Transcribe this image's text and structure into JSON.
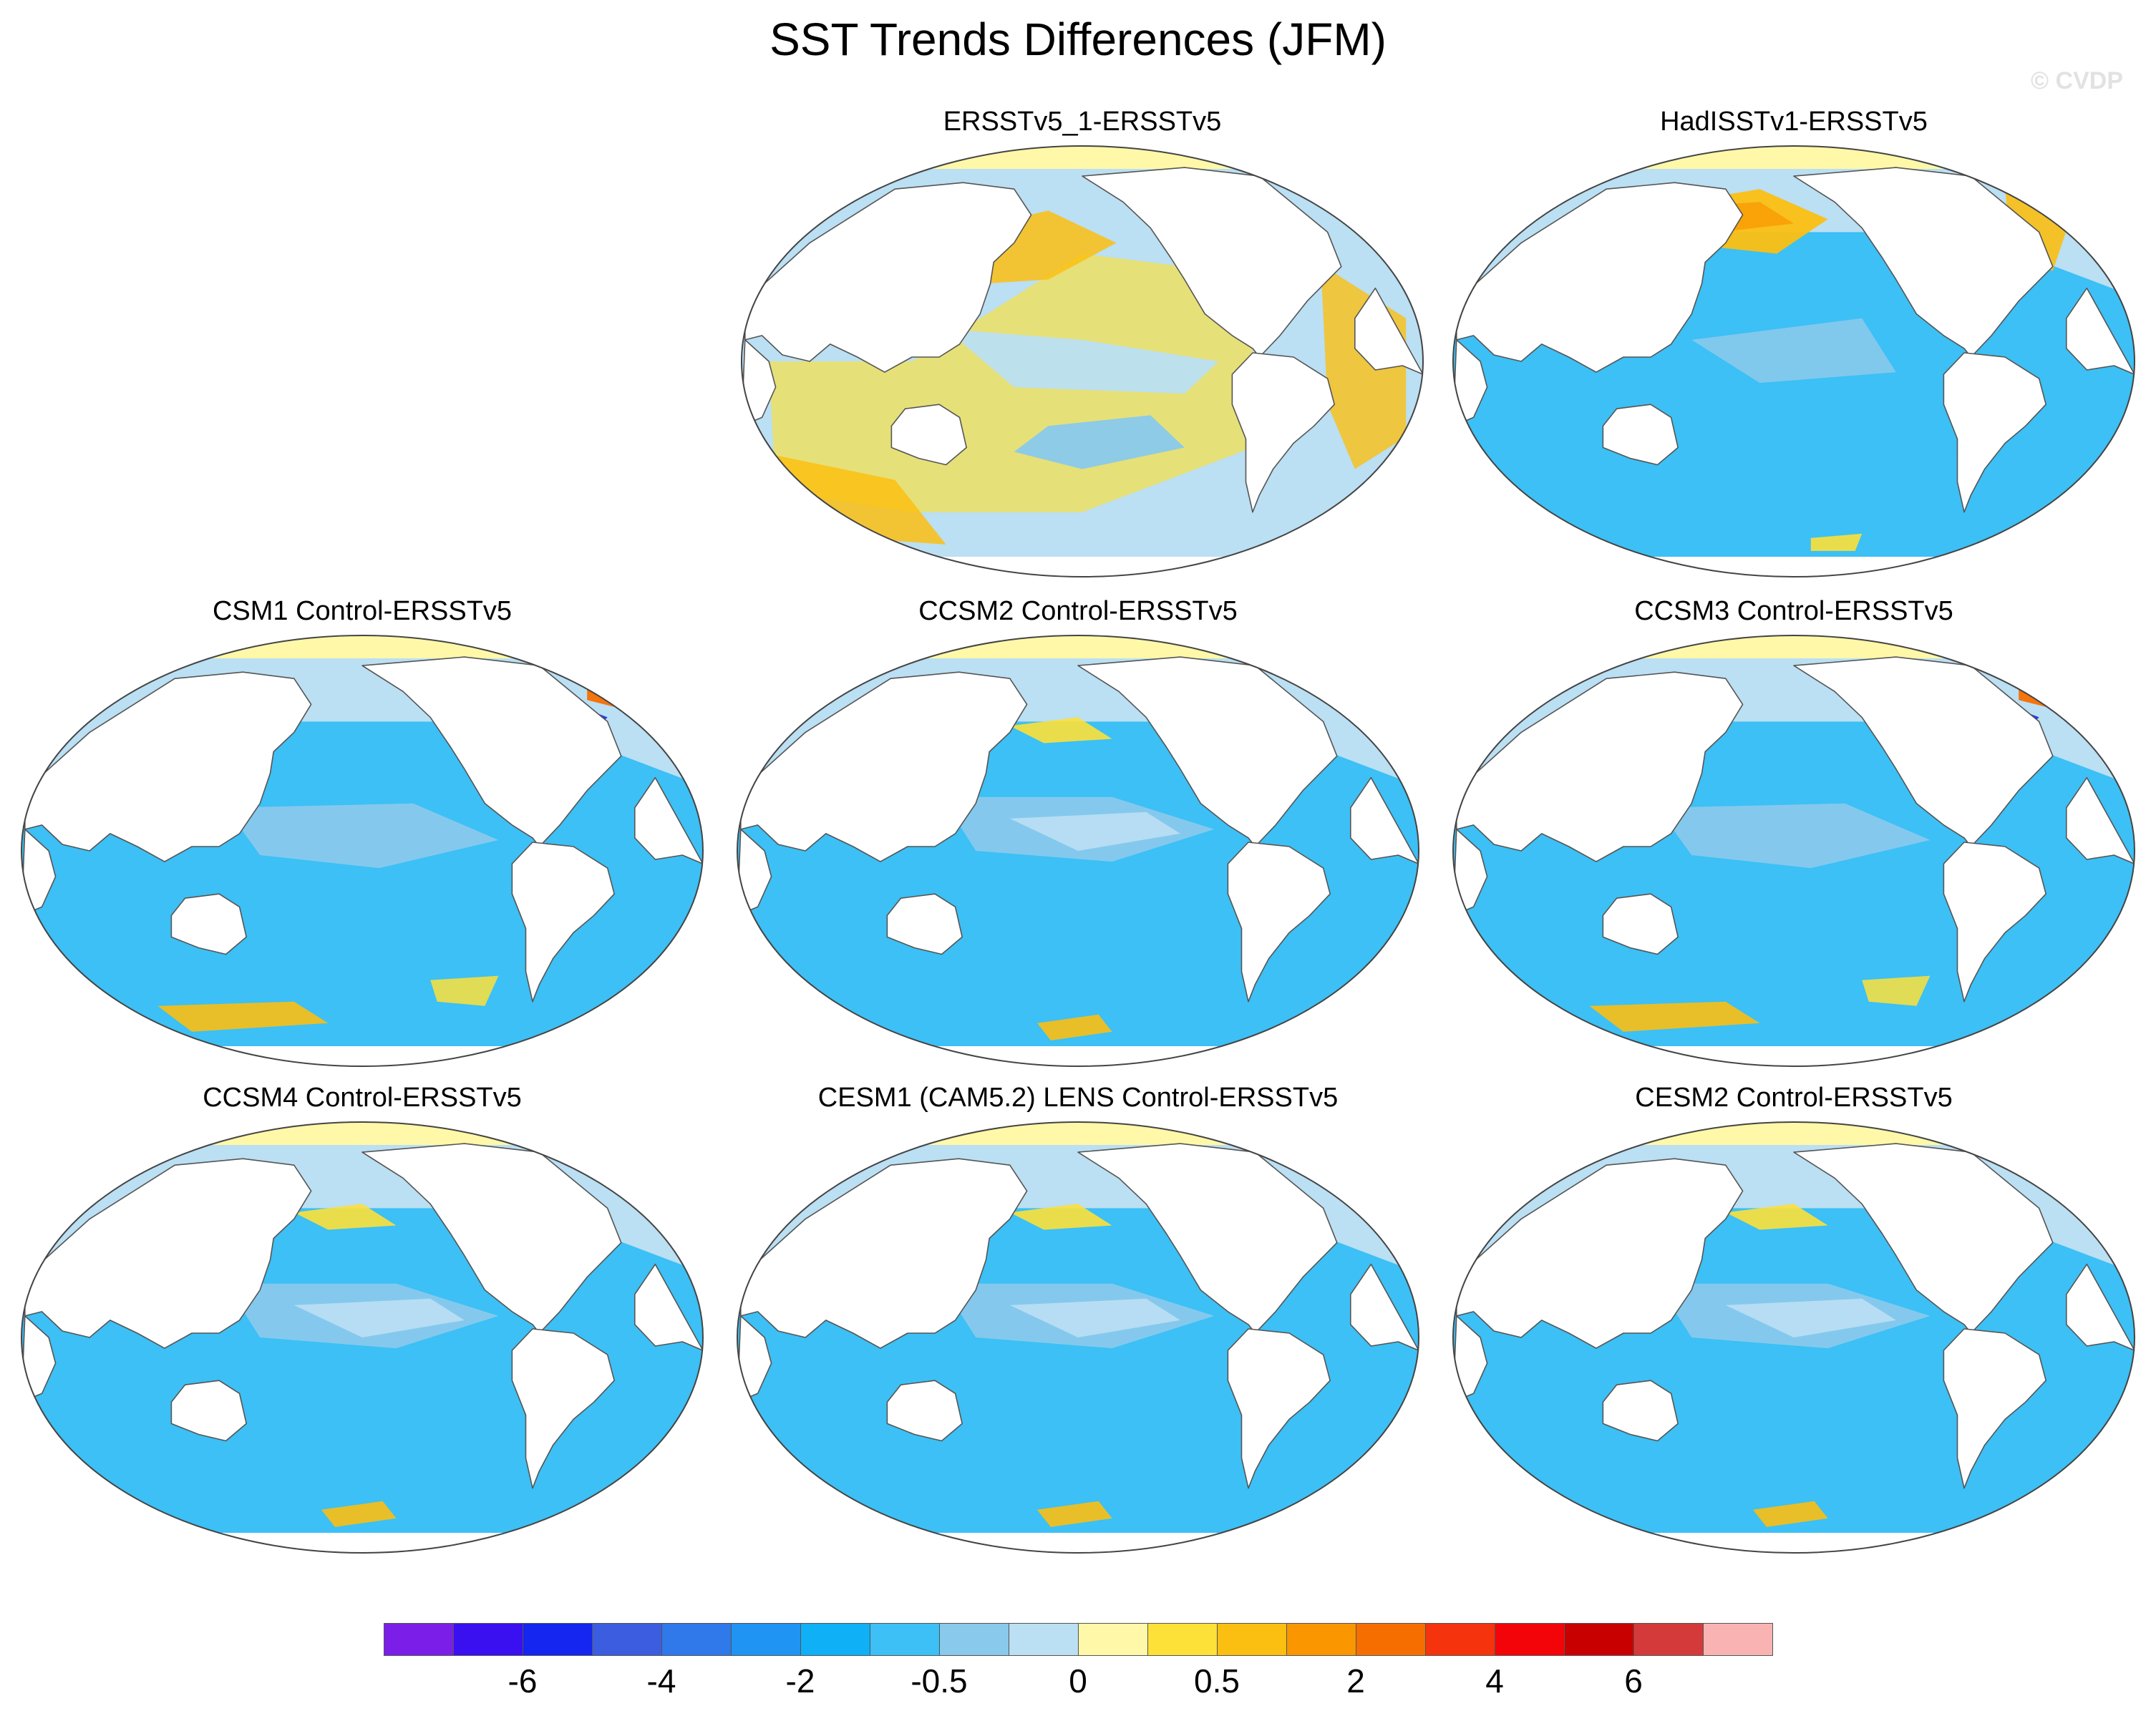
{
  "title": "SST Trends Differences (JFM)",
  "credit": "© CVDP",
  "projection": "Robinson",
  "panels": [
    {
      "label": "ERSSTv5_1-ERSSTv5",
      "pattern": "warm"
    },
    {
      "label": "HadISSTv1-ERSSTv5",
      "pattern": "cool_warm_north"
    },
    {
      "label": "CSM1 Control-ERSSTv5",
      "pattern": "cool_atlantic_dipole"
    },
    {
      "label": "CCSM2 Control-ERSSTv5",
      "pattern": "cool"
    },
    {
      "label": "CCSM3 Control-ERSSTv5",
      "pattern": "cool_atlantic_dipole"
    },
    {
      "label": "CCSM4 Control-ERSSTv5",
      "pattern": "cool"
    },
    {
      "label": "CESM1 (CAM5.2) LENS Control-ERSSTv5",
      "pattern": "cool"
    },
    {
      "label": "CESM2 Control-ERSSTv5",
      "pattern": "cool"
    }
  ],
  "colorbar": {
    "colors": [
      "#7b1fe8",
      "#3a10f0",
      "#1426ef",
      "#3c5ddf",
      "#2f79ea",
      "#1f94f2",
      "#0fb0f5",
      "#3cc0f5",
      "#88c9ec",
      "#bbdff3",
      "#fff8a8",
      "#fde038",
      "#fbbf12",
      "#f99600",
      "#f76e00",
      "#f5330c",
      "#f30408",
      "#c80000",
      "#d43a3a",
      "#fab3b3"
    ],
    "tick_labels": [
      "-6",
      "-4",
      "-2",
      "-0.5",
      "0",
      "0.5",
      "2",
      "4",
      "6"
    ]
  }
}
